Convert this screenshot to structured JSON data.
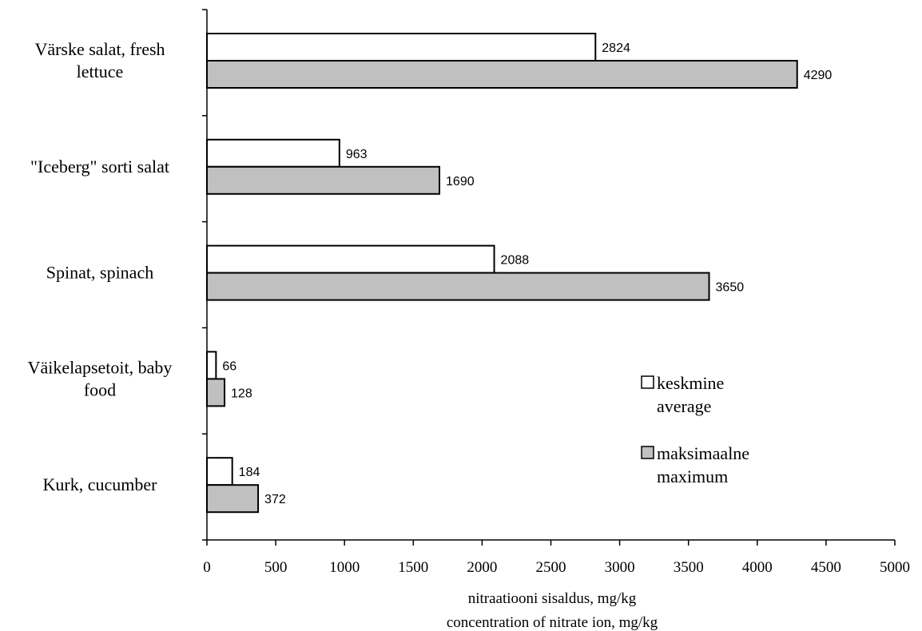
{
  "chart_data": {
    "type": "bar",
    "orientation": "horizontal",
    "categories": [
      [
        "Värske salat, fresh",
        "lettuce"
      ],
      [
        "\"Iceberg\" sorti salat"
      ],
      [
        "Spinat, spinach"
      ],
      [
        "Väikelapsetoit, baby",
        "food"
      ],
      [
        "Kurk, cucumber"
      ]
    ],
    "series": [
      {
        "name": [
          "keskmine",
          "average"
        ],
        "color": "#ffffff",
        "values": [
          2824,
          963,
          2088,
          66,
          184
        ],
        "labels": [
          "2824",
          "963",
          "2088",
          "66",
          "184"
        ]
      },
      {
        "name": [
          "maksimaalne",
          "maximum"
        ],
        "color": "#c0c0c0",
        "values": [
          4290,
          1690,
          3650,
          128,
          372
        ],
        "labels": [
          "4290",
          "1690",
          "3650",
          "128",
          "372"
        ]
      }
    ],
    "xlim": [
      0,
      5000
    ],
    "xticks": [
      0,
      500,
      1000,
      1500,
      2000,
      2500,
      3000,
      3500,
      4000,
      4500,
      5000
    ],
    "xtick_labels": [
      "0",
      "500",
      "1000",
      "1500",
      "2000",
      "2500",
      "3000",
      "3500",
      "4000",
      "4500",
      "5000"
    ],
    "xlabel": [
      "nitraatiooni sisaldus, mg/kg",
      "concentration of nitrate ion, mg/kg"
    ],
    "ylabel": "",
    "grid": false,
    "legend_position": "right"
  }
}
